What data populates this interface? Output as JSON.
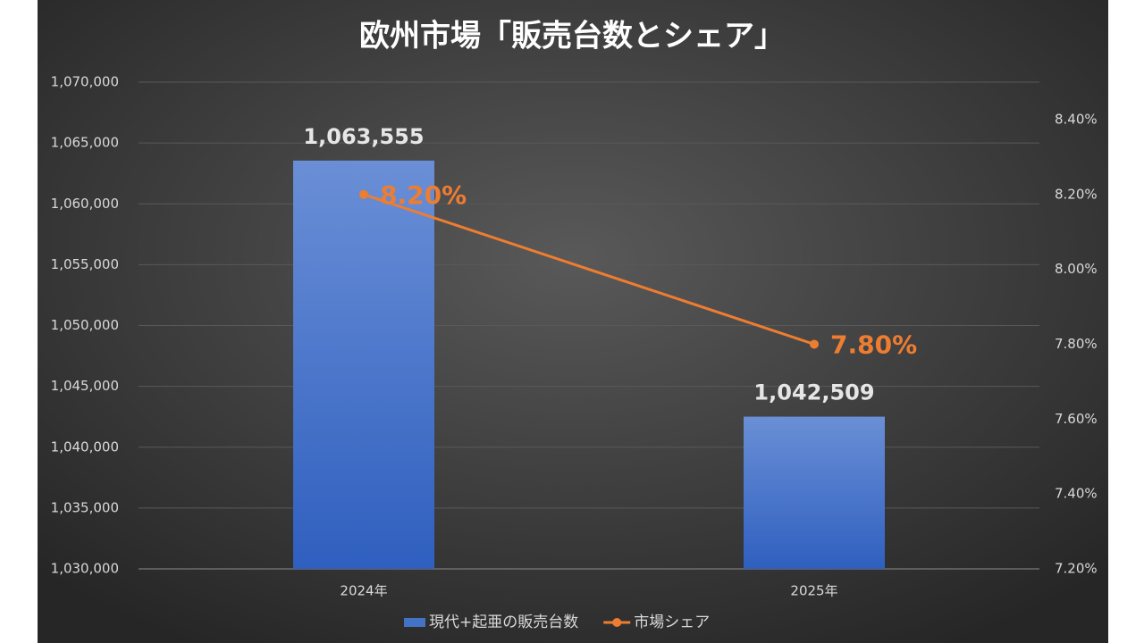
{
  "chart_data": {
    "type": "bar",
    "title": "欧州市場「販売台数とシェア」",
    "categories": [
      "2024年",
      "2025年"
    ],
    "series": [
      {
        "name": "現代+起亜の販売台数",
        "type": "bar",
        "color": "#4472c4",
        "values": [
          1063555,
          1042509
        ],
        "value_labels": [
          "1,063,555",
          "1,042,509"
        ]
      },
      {
        "name": "市場シェア",
        "type": "line",
        "axis": "y2",
        "color": "#ed7d31",
        "values": [
          8.2,
          7.8
        ],
        "value_labels": [
          "8.20%",
          "7.80%"
        ]
      }
    ],
    "ylim": [
      1030000,
      1070000
    ],
    "yticks": [
      {
        "value": 1030000,
        "label": "1,030,000"
      },
      {
        "value": 1035000,
        "label": "1,035,000"
      },
      {
        "value": 1040000,
        "label": "1,040,000"
      },
      {
        "value": 1045000,
        "label": "1,045,000"
      },
      {
        "value": 1050000,
        "label": "1,050,000"
      },
      {
        "value": 1055000,
        "label": "1,055,000"
      },
      {
        "value": 1060000,
        "label": "1,060,000"
      },
      {
        "value": 1065000,
        "label": "1,065,000"
      },
      {
        "value": 1070000,
        "label": "1,070,000"
      }
    ],
    "y2lim": [
      7.2,
      8.5
    ],
    "y2ticks": [
      {
        "value": 7.2,
        "label": "7.20%"
      },
      {
        "value": 7.4,
        "label": "7.40%"
      },
      {
        "value": 7.6,
        "label": "7.60%"
      },
      {
        "value": 7.8,
        "label": "7.80%"
      },
      {
        "value": 8.0,
        "label": "8.00%"
      },
      {
        "value": 8.2,
        "label": "8.20%"
      },
      {
        "value": 8.4,
        "label": "8.40%"
      }
    ],
    "grid": true,
    "legend": "bottom"
  }
}
